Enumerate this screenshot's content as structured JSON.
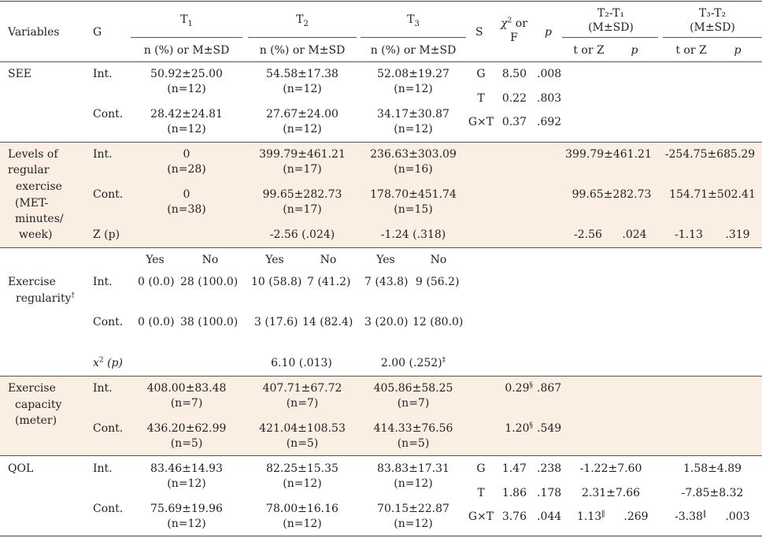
{
  "header": {
    "variables": "Variables",
    "g": "G",
    "t1": "T",
    "t1_sub": "1",
    "t2": "T",
    "t2_sub": "2",
    "t3": "T",
    "t3_sub": "3",
    "s": "S",
    "x2_or": "χ",
    "x2_sup": "2",
    "x2_or_text": "or",
    "f": "F",
    "p": "p",
    "t2t1": "T₂-T₁",
    "t2t1_sub": "(M±SD)",
    "t3t2": "T₃-T₂",
    "t3t2_sub": "(M±SD)",
    "n_msd": "n (%) or M±SD",
    "t_or_z": "t or Z",
    "p_sub": "p"
  },
  "see": {
    "label": "SEE",
    "int": "Int.",
    "cont": "Cont.",
    "int_t1": "50.92±25.00",
    "int_t1_n": "(n=12)",
    "int_t2": "54.58±17.38",
    "int_t2_n": "(n=12)",
    "int_t3": "52.08±19.27",
    "int_t3_n": "(n=12)",
    "cont_t1": "28.42±24.81",
    "cont_t1_n": "(n=12)",
    "cont_t2": "27.67±24.00",
    "cont_t2_n": "(n=12)",
    "cont_t3": "34.17±30.87",
    "cont_t3_n": "(n=12)",
    "s1": "G",
    "f1": "8.50",
    "p1": ".008",
    "s2": "T",
    "f2": "0.22",
    "p2": ".803",
    "s3": "G×T",
    "f3": "0.37",
    "p3": ".692"
  },
  "lre": {
    "label1": "Levels of",
    "label2": "regular",
    "label3": "exercise",
    "label4": "(MET-",
    "label5": "minutes/",
    "label6": "week)",
    "int": "Int.",
    "cont": "Cont.",
    "zp": "Z (p)",
    "int_t1": "0",
    "int_t1_n": "(n=28)",
    "int_t2": "399.79±461.21",
    "int_t2_n": "(n=17)",
    "int_t3": "236.63±303.09",
    "int_t3_n": "(n=16)",
    "cont_t1": "0",
    "cont_t1_n": "(n=38)",
    "cont_t2": "99.65±282.73",
    "cont_t2_n": "(n=17)",
    "cont_t3": "178.70±451.74",
    "cont_t3_n": "(n=15)",
    "z_t2": "-2.56 (.024)",
    "z_t3": "-1.24 (.318)",
    "int_d21": "399.79±461.21",
    "int_d32": "-254.75±685.29",
    "cont_d21": "99.65±282.73",
    "cont_d32": "154.71±502.41",
    "z_d21_t": "-2.56",
    "z_d21_p": ".024",
    "z_d32_t": "-1.13",
    "z_d32_p": ".319"
  },
  "er": {
    "label1": "Exercise",
    "label2": "regularity",
    "dagger": "†",
    "int": "Int.",
    "cont": "Cont.",
    "x2p": "(p)",
    "x2": "x",
    "x2_sup": "2",
    "yes": "Yes",
    "no": "No",
    "int_t1_yes": "0 (0.0)",
    "int_t1_no": "28 (100.0)",
    "int_t2_yes": "10 (58.8)",
    "int_t2_no": "7 (41.2)",
    "int_t3_yes": "7 (43.8)",
    "int_t3_no": "9 (56.2)",
    "cont_t1_yes": "0 (0.0)",
    "cont_t1_no": "38 (100.0)",
    "cont_t2_yes": "3 (17.6)",
    "cont_t2_no": "14 (82.4)",
    "cont_t3_yes": "3 (20.0)",
    "cont_t3_no": "12 (80.0)",
    "x2_t2": "6.10 (.013)",
    "x2_t3": "2.00 (.252)",
    "ddagger": "‡"
  },
  "ec": {
    "label1": "Exercise",
    "label2": "capacity",
    "label3": "(meter)",
    "int": "Int.",
    "cont": "Cont.",
    "int_t1": "408.00±83.48",
    "int_t1_n": "(n=7)",
    "int_t2": "407.71±67.72",
    "int_t2_n": "(n=7)",
    "int_t3": "405.86±58.25",
    "int_t3_n": "(n=7)",
    "cont_t1": "436.20±62.99",
    "cont_t1_n": "(n=5)",
    "cont_t2": "421.04±108.53",
    "cont_t2_n": "(n=5)",
    "cont_t3": "414.33±76.56",
    "cont_t3_n": "(n=5)",
    "int_f": "0.29",
    "int_p": ".867",
    "cont_f": "1.20",
    "cont_p": ".549",
    "sect": "§"
  },
  "qol": {
    "label": "QOL",
    "int": "Int.",
    "cont": "Cont.",
    "int_t1": "83.46±14.93",
    "int_t1_n": "(n=12)",
    "int_t2": "82.25±15.35",
    "int_t2_n": "(n=12)",
    "int_t3": "83.83±17.31",
    "int_t3_n": "(n=12)",
    "cont_t1": "75.69±19.96",
    "cont_t1_n": "(n=12)",
    "cont_t2": "78.00±16.16",
    "cont_t2_n": "(n=12)",
    "cont_t3": "70.15±22.87",
    "cont_t3_n": "(n=12)",
    "s1": "G",
    "f1": "1.47",
    "p1": ".238",
    "d21_1": "-1.22±7.60",
    "d32_1": "1.58±4.89",
    "s2": "T",
    "f2": "1.86",
    "p2": ".178",
    "d21_2": "2.31±7.66",
    "d32_2": "-7.85±8.32",
    "s3": "G×T",
    "f3": "3.76",
    "p3": ".044",
    "d21_3_t": "1.13",
    "d21_3_p": ".269",
    "d32_3_t": "-3.38",
    "d32_3_p": ".003",
    "pipe": "‖"
  }
}
